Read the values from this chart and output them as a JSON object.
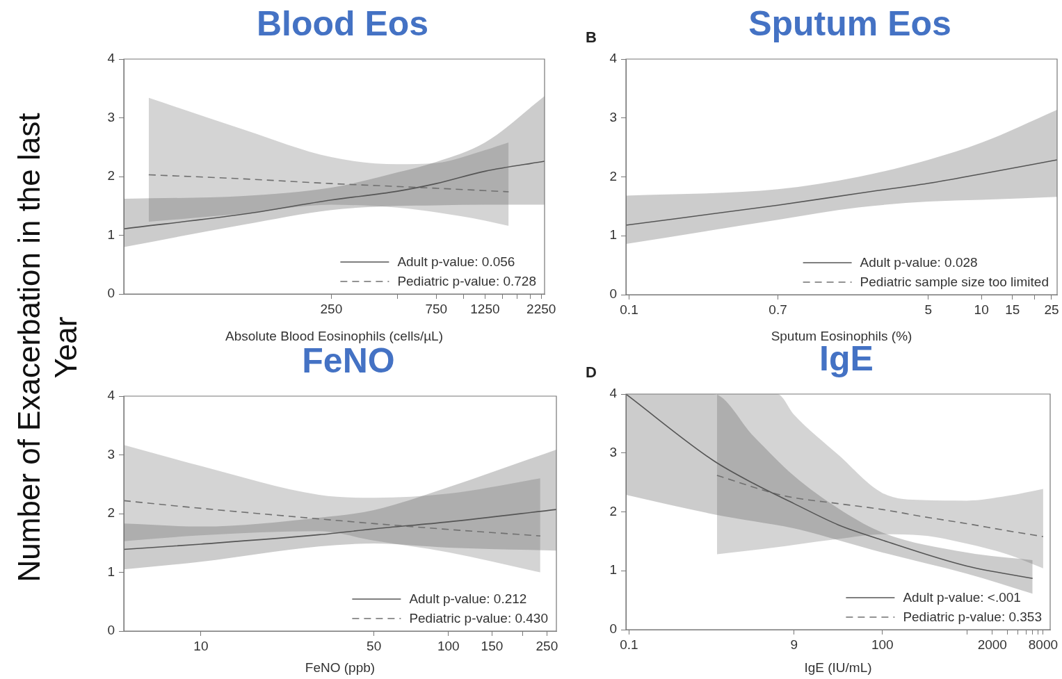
{
  "chart_data": [
    {
      "type": "line",
      "title": "Blood Eos",
      "xlabel": "Absolute Blood Eosinophils (cells/µL)",
      "ylabel": "Number of Exacerbation in the last Year",
      "log": "x",
      "legend": "bottom right",
      "xlim": [
        28.5,
        2330
      ],
      "xticks": [
        250,
        {
          "value": 500,
          "label": null
        },
        750,
        {
          "value": 1000,
          "label": null
        },
        1250,
        {
          "value": 1500,
          "label": null
        },
        {
          "value": 1750,
          "label": null
        },
        {
          "value": 2000,
          "label": null
        },
        2250
      ],
      "ylim": [
        0,
        4
      ],
      "yticks": [
        0,
        1,
        2,
        3,
        4
      ],
      "series": [
        {
          "name": "Adult p-value: 0.056",
          "color": "#555555",
          "line_style": "solid",
          "x": [
            28.5,
            100,
            250,
            500,
            750,
            1250,
            2330
          ],
          "values": [
            1.11,
            1.36,
            1.6,
            1.75,
            1.88,
            2.09,
            2.26
          ],
          "lower": [
            0.8,
            1.18,
            1.43,
            1.5,
            1.51,
            1.52,
            1.52
          ],
          "upper": [
            1.62,
            1.67,
            1.81,
            2.07,
            2.25,
            2.58,
            3.37
          ]
        },
        {
          "name": "Pediatric p-value: 0.728",
          "color": "#707070",
          "line_style": "dashed",
          "x": [
            37,
            100,
            250,
            500,
            750,
            1250,
            1600
          ],
          "values": [
            2.03,
            1.96,
            1.88,
            1.83,
            1.8,
            1.76,
            1.74
          ],
          "lower": [
            1.23,
            1.37,
            1.52,
            1.47,
            1.39,
            1.25,
            1.16
          ],
          "upper": [
            3.34,
            2.8,
            2.33,
            2.21,
            2.23,
            2.45,
            2.58
          ]
        }
      ]
    },
    {
      "type": "line",
      "title": "Sputum Eos",
      "xlabel": "Sputum Eosinophils (%)",
      "log": "x",
      "legend": "bottom right",
      "annotations": [
        "B"
      ],
      "xlim": [
        0.096,
        26.9
      ],
      "xticks": [
        0.1,
        0.7,
        5,
        10,
        15,
        {
          "value": 20,
          "label": null
        },
        25
      ],
      "ylim": [
        0,
        4
      ],
      "yticks": [
        0,
        1,
        2,
        3,
        4
      ],
      "series": [
        {
          "name": "Adult p-value: 0.028",
          "color": "#555555",
          "line_style": "solid",
          "x": [
            0.096,
            0.7,
            2,
            5,
            10,
            26.9
          ],
          "values": [
            1.18,
            1.52,
            1.72,
            1.89,
            2.05,
            2.29
          ],
          "lower": [
            0.86,
            1.27,
            1.48,
            1.58,
            1.61,
            1.66
          ],
          "upper": [
            1.68,
            1.79,
            2.0,
            2.29,
            2.58,
            3.14
          ]
        },
        {
          "name": "Pediatric sample size too limited",
          "color": "#707070",
          "line_style": "dashed"
        }
      ]
    },
    {
      "type": "line",
      "title": "FeNO",
      "xlabel": "FeNO (ppb)",
      "log": "x",
      "legend": "bottom right",
      "xlim": [
        4.88,
        273
      ],
      "xticks": [
        10,
        50,
        100,
        150,
        {
          "value": 200,
          "label": null
        },
        250
      ],
      "ylim": [
        0,
        4
      ],
      "yticks": [
        0,
        1,
        2,
        3,
        4
      ],
      "series": [
        {
          "name": "Adult p-value: 0.212",
          "color": "#555555",
          "line_style": "solid",
          "x": [
            4.88,
            10,
            30,
            50,
            100,
            273
          ],
          "values": [
            1.39,
            1.48,
            1.64,
            1.74,
            1.86,
            2.07
          ],
          "lower": [
            1.05,
            1.18,
            1.44,
            1.49,
            1.42,
            1.37
          ],
          "upper": [
            1.83,
            1.78,
            1.93,
            2.06,
            2.45,
            3.09
          ]
        },
        {
          "name": "Pediatric p-value: 0.430",
          "color": "#707070",
          "line_style": "dashed",
          "x": [
            4.88,
            10,
            30,
            50,
            100,
            235
          ],
          "values": [
            2.22,
            2.09,
            1.91,
            1.83,
            1.73,
            1.62
          ],
          "lower": [
            1.53,
            1.63,
            1.7,
            1.54,
            1.34,
            1.0
          ],
          "upper": [
            3.17,
            2.81,
            2.32,
            2.27,
            2.34,
            2.6
          ]
        }
      ]
    },
    {
      "type": "line",
      "title": "IgE",
      "xlabel": "IgE (IU/mL)",
      "log": "x",
      "legend": "bottom right",
      "annotations": [
        "D"
      ],
      "xlim": [
        0.092,
        9690
      ],
      "xticks": [
        0.1,
        9,
        100,
        {
          "value": 1000,
          "label": null
        },
        2000,
        {
          "value": 3000,
          "label": null
        },
        {
          "value": 4000,
          "label": null
        },
        {
          "value": 5000,
          "label": null
        },
        {
          "value": 6000,
          "label": null
        },
        {
          "value": 7000,
          "label": null
        },
        8000
      ],
      "ylim": [
        0,
        4
      ],
      "yticks": [
        0,
        1,
        2,
        3,
        4
      ],
      "series": [
        {
          "name": "Adult p-value: <.001",
          "color": "#555555",
          "line_style": "solid",
          "x": [
            0.092,
            1,
            3,
            9,
            30,
            100,
            1000,
            6000
          ],
          "values": [
            4.0,
            2.87,
            2.48,
            2.14,
            1.78,
            1.52,
            1.08,
            0.87
          ],
          "lower": [
            2.29,
            1.96,
            1.84,
            1.72,
            1.52,
            1.31,
            0.95,
            0.61
          ],
          "upper": [
            4,
            4,
            3.28,
            2.61,
            2.06,
            1.65,
            1.31,
            1.18
          ]
        },
        {
          "name": "Pediatric p-value: 0.353",
          "color": "#707070",
          "line_style": "dashed",
          "x": [
            1.1,
            5.7,
            9,
            30,
            100,
            300,
            1000,
            3000,
            8000
          ],
          "values": [
            2.62,
            2.3,
            2.24,
            2.14,
            2.04,
            1.92,
            1.8,
            1.68,
            1.58
          ],
          "lower": [
            1.28,
            1.4,
            1.44,
            1.54,
            1.62,
            1.6,
            1.46,
            1.28,
            1.04
          ],
          "upper": [
            4,
            4,
            3.65,
            2.97,
            2.32,
            2.2,
            2.19,
            2.27,
            2.39
          ]
        }
      ]
    }
  ]
}
